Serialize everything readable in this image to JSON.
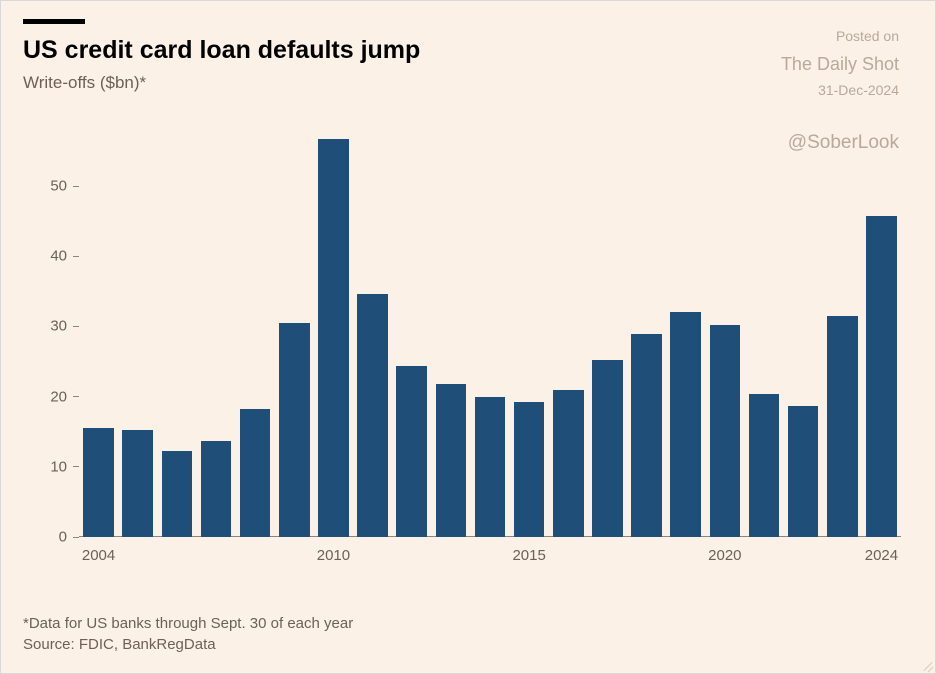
{
  "header": {
    "title": "US credit card loan defaults jump",
    "subtitle": "Write-offs ($bn)*",
    "accent_color": "#000000",
    "title_fontsize_pt": 19,
    "subtitle_fontsize_pt": 13,
    "subtitle_color": "#6c6058"
  },
  "watermark": {
    "posted_label": "Posted on",
    "source_name": "The Daily Shot",
    "date": "31-Dec-2024",
    "handle": "@SoberLook",
    "color": "#b8a99a"
  },
  "chart": {
    "type": "bar",
    "background_color": "#fcf1e6",
    "bar_color": "#1f4e79",
    "axis_color": "#8f847a",
    "label_color": "#6c6058",
    "label_fontsize_pt": 11,
    "bar_width_ratio": 0.78,
    "ylim": [
      0,
      57
    ],
    "ytick_step": 10,
    "yticks": [
      0,
      10,
      20,
      30,
      40,
      50
    ],
    "xtick_years": [
      2004,
      2010,
      2015,
      2020,
      2024
    ],
    "years": [
      2004,
      2005,
      2006,
      2007,
      2008,
      2009,
      2010,
      2011,
      2012,
      2013,
      2014,
      2015,
      2016,
      2017,
      2018,
      2019,
      2020,
      2021,
      2022,
      2023,
      2024
    ],
    "values": [
      15.5,
      15.2,
      12.3,
      13.7,
      18.2,
      30.5,
      56.7,
      34.7,
      24.4,
      21.8,
      20.0,
      19.2,
      21.0,
      25.2,
      29.0,
      32.0,
      30.2,
      20.4,
      18.6,
      31.5,
      45.7
    ]
  },
  "footnote": {
    "line1": "*Data for US banks through Sept. 30 of each year",
    "line2": "Source: FDIC, BankRegData",
    "fontsize_pt": 11,
    "color": "#6c6058"
  }
}
